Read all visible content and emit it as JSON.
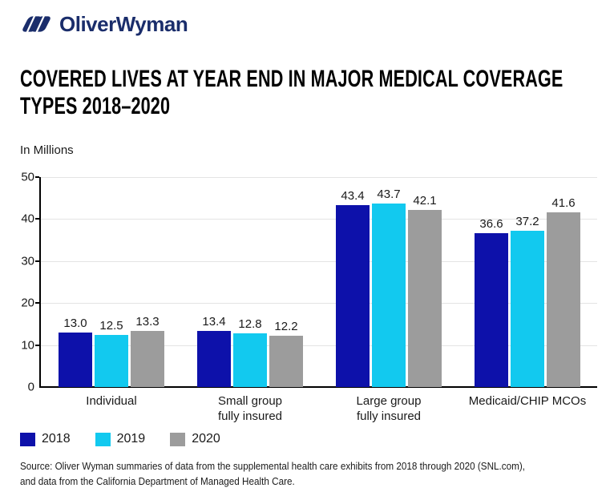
{
  "header": {
    "logo_text": "OliverWyman",
    "brand_color": "#1a2d6b",
    "title_lines": [
      "COVERED LIVES AT YEAR END IN MAJOR MEDICAL COVERAGE",
      "TYPES 2018–2020"
    ]
  },
  "chart_data": {
    "type": "bar",
    "title": "Covered lives at year end in major medical coverage types 2018–2020",
    "ylabel": "In Millions",
    "categories": [
      "Individual",
      "Small group\nfully insured",
      "Large group\nfully insured",
      "Medicaid/CHIP MCOs"
    ],
    "series": [
      {
        "name": "2018",
        "color": "#0d11aa",
        "values": [
          13.0,
          13.4,
          43.4,
          36.6
        ]
      },
      {
        "name": "2019",
        "color": "#12c9ef",
        "values": [
          12.5,
          12.8,
          43.7,
          37.2
        ]
      },
      {
        "name": "2020",
        "color": "#9c9c9c",
        "values": [
          13.3,
          12.2,
          42.1,
          41.6
        ]
      }
    ],
    "ylim": [
      0,
      50
    ],
    "ytick_step": 10,
    "grid": "horizontal-gridlines-on",
    "legend_position": "bottom-left",
    "value_labels": "shown-above-bars-one-decimal",
    "axis_color": "#000000",
    "gridline_color": "#e4e4e4",
    "text_color": "#1a1a1a"
  },
  "footer": {
    "source_lines": [
      "Source: Oliver Wyman summaries of data from the supplemental health care exhibits from 2018 through 2020 (SNL.com),",
      "and data from the California Department of Managed Health Care."
    ]
  }
}
